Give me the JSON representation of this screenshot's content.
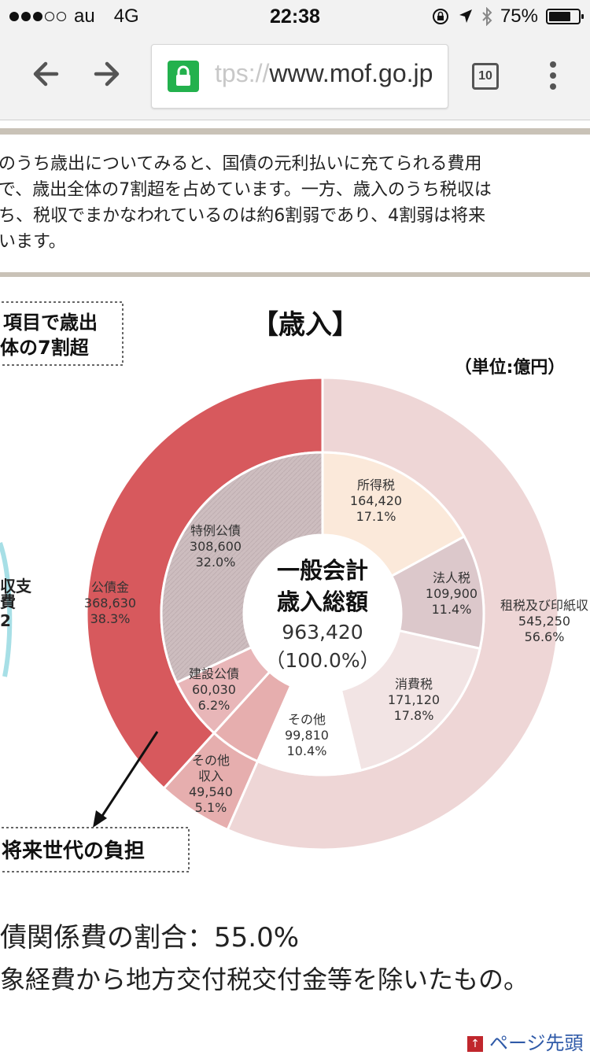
{
  "status": {
    "carrier": "au",
    "network": "4G",
    "time": "22:38",
    "battery": "75%",
    "battery_level": 0.75
  },
  "browser": {
    "url_scheme": "tps://",
    "url_host": "www.mof.go.jp",
    "tab_count": "10"
  },
  "intro": [
    "のうち歳出についてみると、国債の元利払いに充てられる費用",
    "で、歳出全体の7割超を占めています。一方、歳入のうち税収は",
    "ち、税収でまかなわれているのは約6割弱であり、4割弱は将来",
    "います。"
  ],
  "callout_top": [
    "項目で歳出",
    "体の7割超"
  ],
  "left_partial": [
    "収支",
    "費",
    "2"
  ],
  "chart_data": {
    "type": "pie",
    "title": "【歳入】",
    "unit": "（単位:億円）",
    "center": {
      "line1": "一般会計",
      "line2": "歳入総額",
      "total": "963,420",
      "pct": "（100.0%）",
      "value": 963420
    },
    "outer": [
      {
        "name": "租税及び印紙収",
        "value": 545250,
        "value_label": "545,250",
        "pct": "56.6%",
        "color": "#eed6d6"
      },
      {
        "name": "その他\n収入",
        "value": 49540,
        "value_label": "49,540",
        "pct": "5.1%",
        "color": "#e6aeae"
      },
      {
        "name": "公債金",
        "value": 368630,
        "value_label": "368,630",
        "pct": "38.3%",
        "color": "#d7595d"
      }
    ],
    "inner": [
      {
        "name": "所得税",
        "value": 164420,
        "value_label": "164,420",
        "pct": "17.1%",
        "color": "#fbe9da"
      },
      {
        "name": "法人税",
        "value": 109900,
        "value_label": "109,900",
        "pct": "11.4%",
        "color": "#dcc8cb"
      },
      {
        "name": "消費税",
        "value": 171120,
        "value_label": "171,120",
        "pct": "17.8%",
        "color": "#f2e4e4"
      },
      {
        "name": "その他",
        "value": 99810,
        "value_label": "99,810",
        "pct": "10.4%",
        "color": "#ffffff"
      },
      {
        "name": "その他収入",
        "value": 49540,
        "value_label": "49,540",
        "pct": "5.1%",
        "color": "#e6aeae"
      },
      {
        "name": "建設公債",
        "value": 60030,
        "value_label": "60,030",
        "pct": "6.2%",
        "color": "#e8b6b8"
      },
      {
        "name": "特例公債",
        "value": 308600,
        "value_label": "308,600",
        "pct": "32.0%",
        "color": "#cdbdbf"
      }
    ],
    "callout_bottom": "将来世代の負担"
  },
  "footer": {
    "line1": "債関係費の割合：55.0%",
    "line2": "象経費から地方交付税交付金等を除いたもの。",
    "page_top": "ページ先頭"
  }
}
